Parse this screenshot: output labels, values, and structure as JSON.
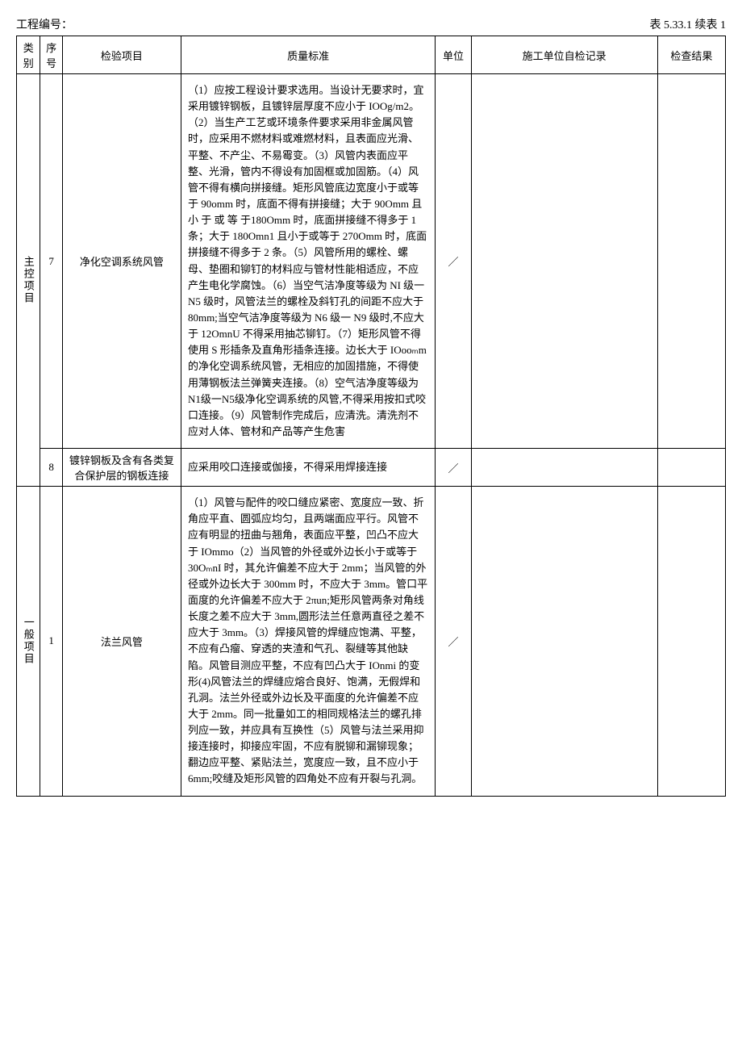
{
  "header": {
    "project_no_label": "工程编号：",
    "table_label": "表 5.33.1 续表 1"
  },
  "columns": {
    "category": "类别",
    "seq": "序号",
    "item": "检验项目",
    "standard": "质量标准",
    "unit": "单位",
    "self_record": "施工单位自检记录",
    "result": "检查结果"
  },
  "sections": [
    {
      "category_label": "主控项目",
      "rows": [
        {
          "seq": "7",
          "item": "净化空调系统风管",
          "standard": "（1）应按工程设计要求选用。当设计无要求时，宜采用镀锌钢板，且镀锌层厚度不应小于 IOOg/m2。（2）当生产工艺或环境条件要求采用非金属风管时，应采用不燃材料或难燃材料，且表面应光滑、平整、不产尘、不易霉变。（3）风管内表面应平整、光滑，管内不得设有加固框或加固筋。（4）风管不得有横向拼接缝。矩形风管底边宽度小于或等于 90omm 时，底面不得有拼接缝；大于 90Omm 且 小 于 或 等 于180Omm 时，底面拼接缝不得多于 1 条；大于 180Omn1 且小于或等于 270Omm 时，底面拼接缝不得多于 2 条。（5）风管所用的螺栓、螺母、垫圈和铆钉的材料应与管材性能相适应，不应产生电化学腐蚀。（6）当空气洁净度等级为 NI 级一 N5 级时，风管法兰的螺栓及斜钉孔的间距不应大于80mm;当空气洁净度等级为 N6 级一 N9 级时,不应大于 12OmnU 不得采用抽芯铆钉。（7）矩形风管不得使用 S 形插条及直角形插条连接。边长大于 IOooₘm 的净化空调系统风管，无相应的加固措施，不得使用薄钢板法兰弹簧夹连接。（8）空气洁净度等级为N1级一N5级净化空调系统的风管,不得采用按扣式咬口连接。（9）风管制作完成后，应清洗。清洗剂不应对人体、管材和产品等产生危害",
          "unit": "／",
          "self_record": "",
          "result": ""
        },
        {
          "seq": "8",
          "item": "镀锌钢板及含有各类复合保护层的钢板连接",
          "standard": "应采用咬口连接或伽接，不得采用焊接连接",
          "unit": "／",
          "self_record": "",
          "result": ""
        }
      ]
    },
    {
      "category_label": "一般项目",
      "rows": [
        {
          "seq": "1",
          "item": "法兰风管",
          "standard": "（1）风管与配件的咬口缝应紧密、宽度应一致、折角应平直、圆弧应均匀，且两端面应平行。风管不应有明显的扭曲与翘角，表面应平整，凹凸不应大于 IOmmo（2）当风管的外径或外边长小于或等于30OₘnI 时，其允许偏差不应大于 2mm；当风管的外径或外边长大于 300mm 时，不应大于 3mm。管口平面度的允许偏差不应大于 2πun;矩形风管两条对角线长度之差不应大于 3mm,圆形法兰任意两直径之差不应大于 3mm。（3）焊接风管的焊缝应饱满、平整，不应有凸瘤、穿透的夹渣和气孔、裂缝等其他缺陷。风管目测应平整，不应有凹凸大于 IOnmi 的变形(4)风管法兰的焊缝应熔合良好、饱满，无假焊和孔洞。法兰外径或外边长及平面度的允许偏差不应大于 2mm。同一批量如工的相同规格法兰的螺孔排列应一致，并应具有互换性（5）风管与法兰采用抑接连接时，抑接应牢固，不应有脱铆和漏铆现象；翻边应平整、紧贴法兰，宽度应一致，且不应小于 6mm;咬缝及矩形风管的四角处不应有开裂与孔洞。",
          "unit": "／",
          "self_record": "",
          "result": ""
        }
      ]
    }
  ]
}
